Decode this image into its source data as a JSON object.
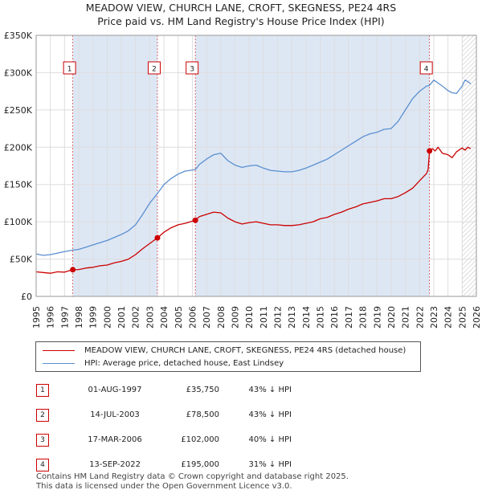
{
  "title_line1": "MEADOW VIEW, CHURCH LANE, CROFT, SKEGNESS, PE24 4RS",
  "title_line2": "Price paid vs. HM Land Registry's House Price Index (HPI)",
  "legend": {
    "red_label": "MEADOW VIEW, CHURCH LANE, CROFT, SKEGNESS, PE24 4RS (detached house)",
    "blue_label": "HPI: Average price, detached house, East Lindsey"
  },
  "sales": [
    {
      "num": "1",
      "date": "01-AUG-1997",
      "price": "£35,750",
      "hpi": "43% ↓ HPI"
    },
    {
      "num": "2",
      "date": "14-JUL-2003",
      "price": "£78,500",
      "hpi": "43% ↓ HPI"
    },
    {
      "num": "3",
      "date": "17-MAR-2006",
      "price": "£102,000",
      "hpi": "40% ↓ HPI"
    },
    {
      "num": "4",
      "date": "13-SEP-2022",
      "price": "£195,000",
      "hpi": "31% ↓ HPI"
    }
  ],
  "footer": {
    "line1": "Contains HM Land Registry data © Crown copyright and database right 2025.",
    "line2": "This data is licensed under the Open Government Licence v3.0."
  },
  "colors": {
    "red": "#cc0000",
    "blue": "#5b8fd0",
    "highlight": "#dde7f4",
    "grid": "#dddddd"
  },
  "chart_data": {
    "type": "line",
    "xlim": [
      1995,
      2026
    ],
    "ylim": [
      0,
      350000
    ],
    "x_ticks": [
      1995,
      1996,
      1997,
      1998,
      1999,
      2000,
      2001,
      2002,
      2003,
      2004,
      2005,
      2006,
      2007,
      2008,
      2009,
      2010,
      2011,
      2012,
      2013,
      2014,
      2015,
      2016,
      2017,
      2018,
      2019,
      2020,
      2021,
      2022,
      2023,
      2024,
      2025,
      2026
    ],
    "y_ticks": [
      {
        "value": 0,
        "label": "£0"
      },
      {
        "value": 50000,
        "label": "£50K"
      },
      {
        "value": 100000,
        "label": "£100K"
      },
      {
        "value": 150000,
        "label": "£150K"
      },
      {
        "value": 200000,
        "label": "£200K"
      },
      {
        "value": 250000,
        "label": "£250K"
      },
      {
        "value": 300000,
        "label": "£300K"
      },
      {
        "value": 350000,
        "label": "£350K"
      }
    ],
    "hatch_from": 2025.0,
    "sale_markers": [
      {
        "label": "1",
        "x": 1997.58,
        "y": 35750
      },
      {
        "label": "2",
        "x": 2003.54,
        "y": 78500
      },
      {
        "label": "3",
        "x": 2006.21,
        "y": 102000
      },
      {
        "label": "4",
        "x": 2022.7,
        "y": 195000
      }
    ],
    "series": [
      {
        "name": "MEADOW VIEW, CHURCH LANE, CROFT, SKEGNESS, PE24 4RS (detached house)",
        "color": "#cc0000",
        "x": [
          1995.0,
          1995.5,
          1996.0,
          1996.5,
          1997.0,
          1997.58,
          1998.0,
          1998.5,
          1999.0,
          1999.5,
          2000.0,
          2000.5,
          2001.0,
          2001.5,
          2002.0,
          2002.5,
          2003.0,
          2003.54,
          2004.0,
          2004.5,
          2005.0,
          2005.5,
          2006.21,
          2006.5,
          2007.0,
          2007.5,
          2008.0,
          2008.5,
          2009.0,
          2009.5,
          2010.0,
          2010.5,
          2011.0,
          2011.5,
          2012.0,
          2012.5,
          2013.0,
          2013.5,
          2014.0,
          2014.5,
          2015.0,
          2015.5,
          2016.0,
          2016.5,
          2017.0,
          2017.5,
          2018.0,
          2018.5,
          2019.0,
          2019.5,
          2020.0,
          2020.5,
          2021.0,
          2021.5,
          2022.0,
          2022.5,
          2022.6,
          2022.7,
          2022.9,
          2023.1,
          2023.3,
          2023.6,
          2024.0,
          2024.3,
          2024.6,
          2025.0,
          2025.2,
          2025.4,
          2025.6
        ],
        "y": [
          33000,
          32000,
          31000,
          33000,
          32500,
          35750,
          36000,
          38000,
          39000,
          41000,
          42000,
          45000,
          47000,
          50000,
          56000,
          64000,
          71000,
          78500,
          86000,
          92000,
          96000,
          98000,
          102000,
          107000,
          110000,
          113000,
          112000,
          105000,
          100000,
          97000,
          99000,
          100000,
          98000,
          96000,
          96000,
          95000,
          95000,
          96000,
          98000,
          100000,
          104000,
          106000,
          110000,
          113000,
          117000,
          120000,
          124000,
          126000,
          128000,
          131000,
          131000,
          134000,
          139000,
          145000,
          155000,
          165000,
          170000,
          195000,
          198000,
          195000,
          200000,
          192000,
          190000,
          186000,
          194000,
          199000,
          196000,
          200000,
          198000
        ]
      },
      {
        "name": "HPI: Average price, detached house, East Lindsey",
        "color": "#5b8fd0",
        "x": [
          1995.0,
          1995.5,
          1996.0,
          1996.5,
          1997.0,
          1997.58,
          1998.0,
          1998.5,
          1999.0,
          1999.5,
          2000.0,
          2000.5,
          2001.0,
          2001.5,
          2002.0,
          2002.5,
          2003.0,
          2003.54,
          2004.0,
          2004.5,
          2005.0,
          2005.5,
          2006.21,
          2006.5,
          2007.0,
          2007.5,
          2008.0,
          2008.5,
          2009.0,
          2009.5,
          2010.0,
          2010.5,
          2011.0,
          2011.5,
          2012.0,
          2012.5,
          2013.0,
          2013.5,
          2014.0,
          2014.5,
          2015.0,
          2015.5,
          2016.0,
          2016.5,
          2017.0,
          2017.5,
          2018.0,
          2018.5,
          2019.0,
          2019.5,
          2020.0,
          2020.5,
          2021.0,
          2021.5,
          2022.0,
          2022.5,
          2022.7,
          2023.0,
          2023.3,
          2023.6,
          2024.0,
          2024.3,
          2024.6,
          2025.0,
          2025.2,
          2025.4,
          2025.6
        ],
        "y": [
          57000,
          55000,
          56000,
          58000,
          60000,
          62000,
          63000,
          66000,
          69000,
          72000,
          75000,
          79000,
          83000,
          88000,
          96000,
          110000,
          125000,
          138000,
          150000,
          158000,
          164000,
          168000,
          170000,
          177000,
          184000,
          190000,
          192000,
          182000,
          176000,
          173000,
          175000,
          176000,
          172000,
          169000,
          168000,
          167000,
          167000,
          169000,
          172000,
          176000,
          180000,
          184000,
          190000,
          196000,
          202000,
          208000,
          214000,
          218000,
          220000,
          224000,
          225000,
          235000,
          250000,
          265000,
          275000,
          282000,
          283000,
          290000,
          286000,
          282000,
          276000,
          273000,
          272000,
          282000,
          290000,
          288000,
          285000
        ]
      }
    ]
  }
}
